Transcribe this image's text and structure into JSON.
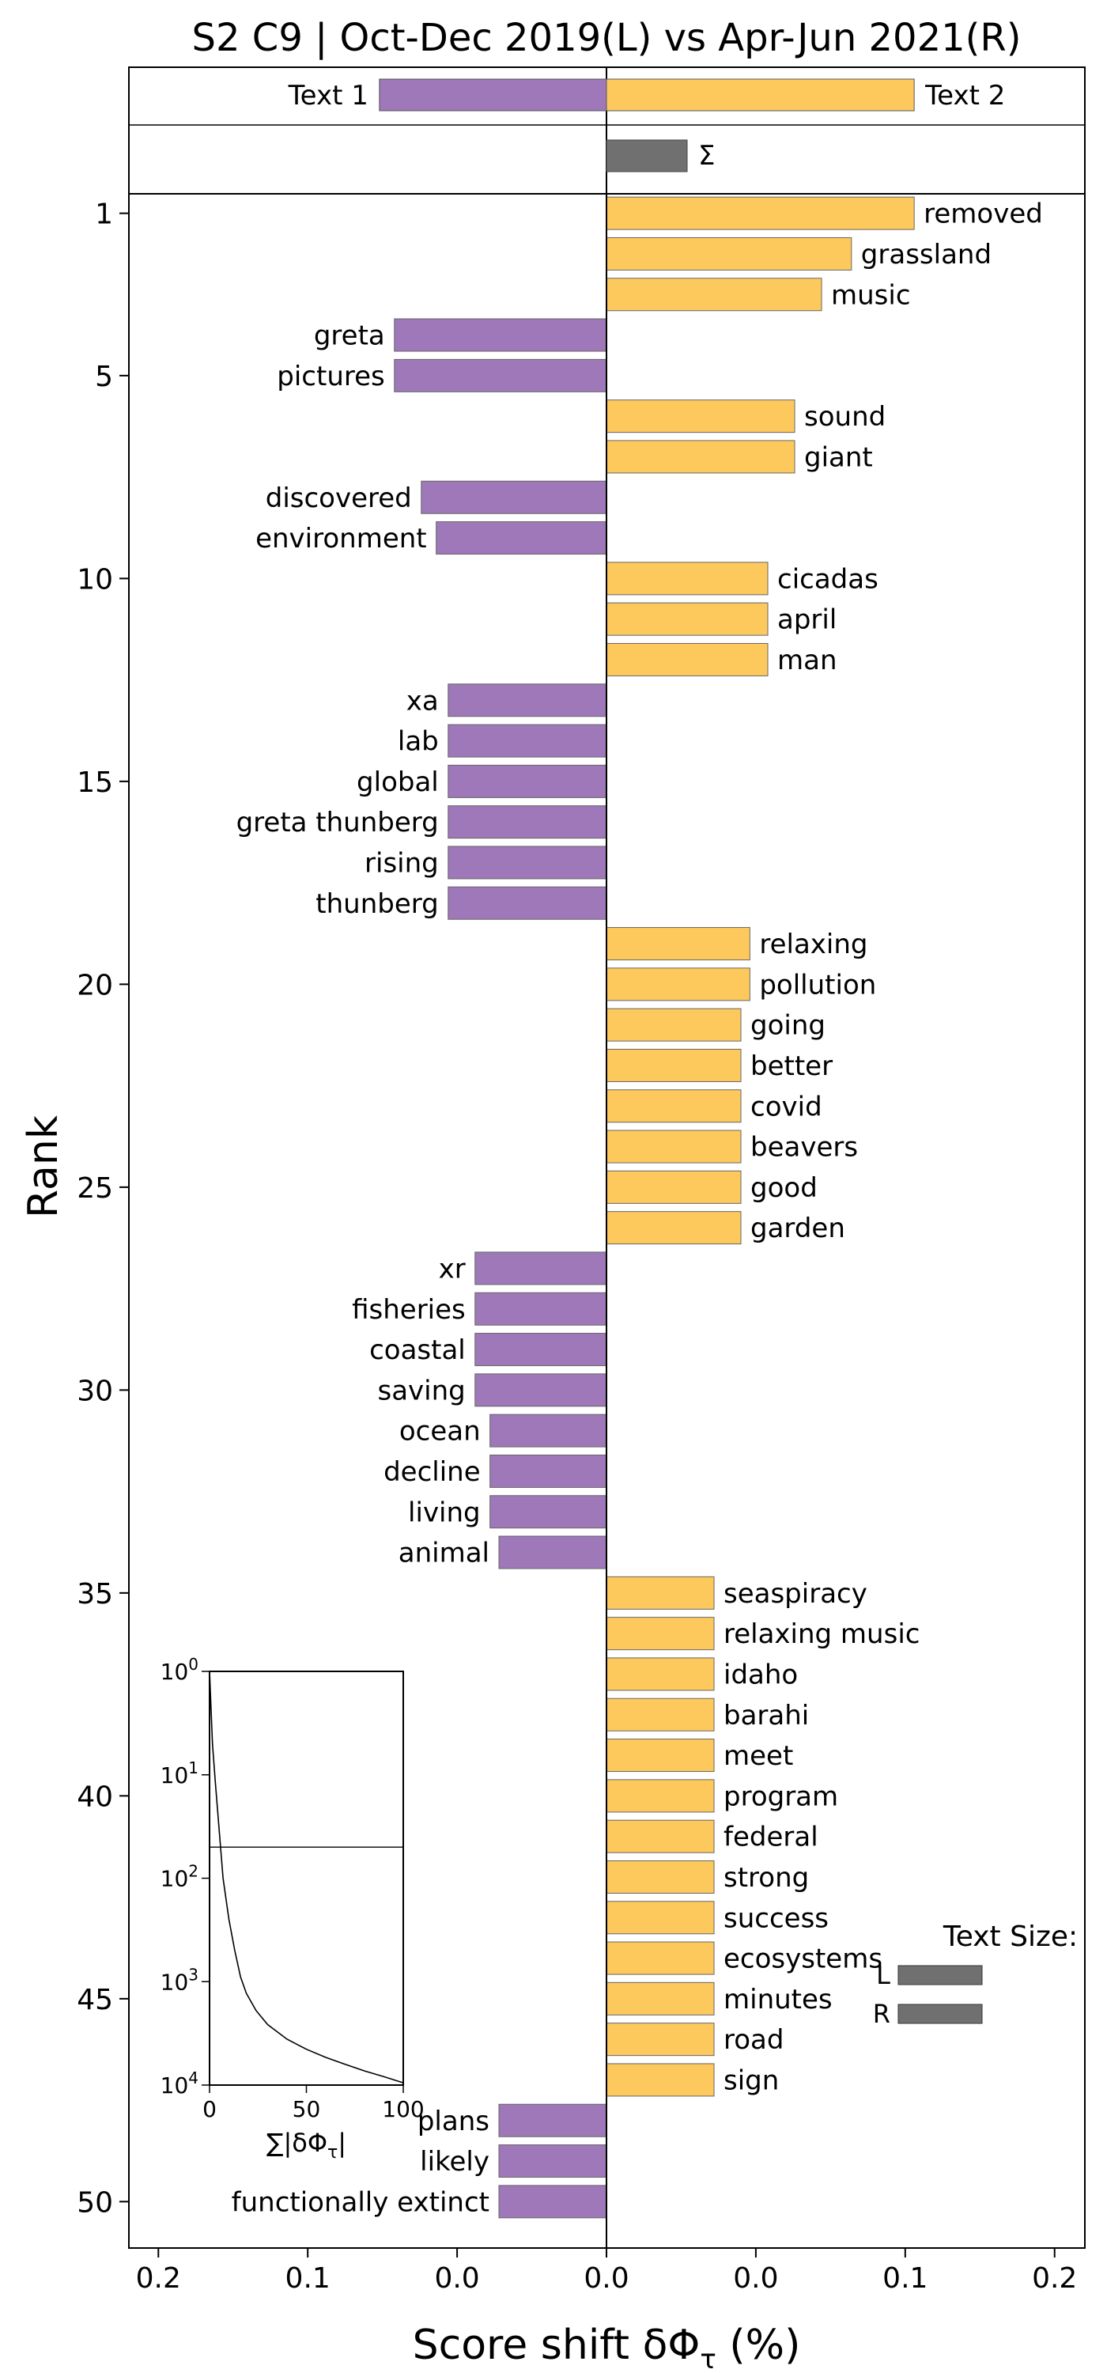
{
  "chart_data": {
    "type": "bar",
    "orientation": "horizontal",
    "title": "S2 C9 | Oct-Dec 2019(L) vs Apr-Jun 2021(R)",
    "xlabel": "Score shift δΦ",
    "xlabel_subscript": "τ",
    "xlabel_suffix": " (%)",
    "ylabel": "Rank",
    "xlim": [
      -0.16,
      0.16
    ],
    "x_ticks": [
      {
        "v": -0.15,
        "label": "0.2"
      },
      {
        "v": -0.1,
        "label": "0.1"
      },
      {
        "v": -0.05,
        "label": "0.0"
      },
      {
        "v": 0.0,
        "label": "0.0"
      },
      {
        "v": 0.05,
        "label": "0.0"
      },
      {
        "v": 0.1,
        "label": "0.1"
      },
      {
        "v": 0.15,
        "label": "0.2"
      }
    ],
    "y_ticks": [
      1,
      5,
      10,
      15,
      20,
      25,
      30,
      35,
      40,
      45,
      50
    ],
    "colors": {
      "text1": "#9e78b8",
      "text2": "#fdc95d",
      "sum": "#707070"
    },
    "header": {
      "text1_label": "Text 1",
      "text1_value": -0.076,
      "text2_label": "Text 2",
      "text2_value": 0.103,
      "sum_label": "Σ",
      "sum_value": 0.027
    },
    "words": [
      {
        "rank": 1,
        "word": "removed",
        "value": 0.103
      },
      {
        "rank": 2,
        "word": "grassland",
        "value": 0.082
      },
      {
        "rank": 3,
        "word": "music",
        "value": 0.072
      },
      {
        "rank": 4,
        "word": "greta",
        "value": -0.071
      },
      {
        "rank": 5,
        "word": "pictures",
        "value": -0.071
      },
      {
        "rank": 6,
        "word": "sound",
        "value": 0.063
      },
      {
        "rank": 7,
        "word": "giant",
        "value": 0.063
      },
      {
        "rank": 8,
        "word": "discovered",
        "value": -0.062
      },
      {
        "rank": 9,
        "word": "environment",
        "value": -0.057
      },
      {
        "rank": 10,
        "word": "cicadas",
        "value": 0.054
      },
      {
        "rank": 11,
        "word": "april",
        "value": 0.054
      },
      {
        "rank": 12,
        "word": "man",
        "value": 0.054
      },
      {
        "rank": 13,
        "word": "xa",
        "value": -0.053
      },
      {
        "rank": 14,
        "word": "lab",
        "value": -0.053
      },
      {
        "rank": 15,
        "word": "global",
        "value": -0.053
      },
      {
        "rank": 16,
        "word": "greta thunberg",
        "value": -0.053
      },
      {
        "rank": 17,
        "word": "rising",
        "value": -0.053
      },
      {
        "rank": 18,
        "word": "thunberg",
        "value": -0.053
      },
      {
        "rank": 19,
        "word": "relaxing",
        "value": 0.048
      },
      {
        "rank": 20,
        "word": "pollution",
        "value": 0.048
      },
      {
        "rank": 21,
        "word": "going",
        "value": 0.045
      },
      {
        "rank": 22,
        "word": "better",
        "value": 0.045
      },
      {
        "rank": 23,
        "word": "covid",
        "value": 0.045
      },
      {
        "rank": 24,
        "word": "beavers",
        "value": 0.045
      },
      {
        "rank": 25,
        "word": "good",
        "value": 0.045
      },
      {
        "rank": 26,
        "word": "garden",
        "value": 0.045
      },
      {
        "rank": 27,
        "word": "xr",
        "value": -0.044
      },
      {
        "rank": 28,
        "word": "fisheries",
        "value": -0.044
      },
      {
        "rank": 29,
        "word": "coastal",
        "value": -0.044
      },
      {
        "rank": 30,
        "word": "saving",
        "value": -0.044
      },
      {
        "rank": 31,
        "word": "ocean",
        "value": -0.039
      },
      {
        "rank": 32,
        "word": "decline",
        "value": -0.039
      },
      {
        "rank": 33,
        "word": "living",
        "value": -0.039
      },
      {
        "rank": 34,
        "word": "animal",
        "value": -0.036
      },
      {
        "rank": 35,
        "word": "seaspiracy",
        "value": 0.036
      },
      {
        "rank": 36,
        "word": "relaxing music",
        "value": 0.036
      },
      {
        "rank": 37,
        "word": "idaho",
        "value": 0.036
      },
      {
        "rank": 38,
        "word": "barahi",
        "value": 0.036
      },
      {
        "rank": 39,
        "word": "meet",
        "value": 0.036
      },
      {
        "rank": 40,
        "word": "program",
        "value": 0.036
      },
      {
        "rank": 41,
        "word": "federal",
        "value": 0.036
      },
      {
        "rank": 42,
        "word": "strong",
        "value": 0.036
      },
      {
        "rank": 43,
        "word": "success",
        "value": 0.036
      },
      {
        "rank": 44,
        "word": "ecosystems",
        "value": 0.036
      },
      {
        "rank": 45,
        "word": "minutes",
        "value": 0.036
      },
      {
        "rank": 46,
        "word": "road",
        "value": 0.036
      },
      {
        "rank": 47,
        "word": "sign",
        "value": 0.036
      },
      {
        "rank": 48,
        "word": "plans",
        "value": -0.036
      },
      {
        "rank": 49,
        "word": "likely",
        "value": -0.036
      },
      {
        "rank": 50,
        "word": "functionally extinct",
        "value": -0.036
      }
    ],
    "inset": {
      "type": "line",
      "xlabel": "∑|δΦ",
      "xlabel_subscript": "τ",
      "xlabel_suffix": "|",
      "x_ticks": [
        0,
        50,
        100
      ],
      "y_ticks": [
        {
          "base": "10",
          "exp": "0"
        },
        {
          "base": "10",
          "exp": "1"
        },
        {
          "base": "10",
          "exp": "2"
        },
        {
          "base": "10",
          "exp": "3"
        },
        {
          "base": "10",
          "exp": "4"
        }
      ],
      "xlim": [
        0,
        100
      ],
      "ylim_log_rank": [
        1,
        10000
      ],
      "marker_rank": 50,
      "curve": [
        {
          "x": 0,
          "rank": 1
        },
        {
          "x": 1.5,
          "rank": 5
        },
        {
          "x": 3,
          "rank": 12
        },
        {
          "x": 5,
          "rank": 35
        },
        {
          "x": 7,
          "rank": 100
        },
        {
          "x": 10,
          "rank": 250
        },
        {
          "x": 13,
          "rank": 500
        },
        {
          "x": 16,
          "rank": 900
        },
        {
          "x": 19,
          "rank": 1300
        },
        {
          "x": 24,
          "rank": 1900
        },
        {
          "x": 30,
          "rank": 2600
        },
        {
          "x": 40,
          "rank": 3600
        },
        {
          "x": 50,
          "rank": 4500
        },
        {
          "x": 60,
          "rank": 5400
        },
        {
          "x": 70,
          "rank": 6300
        },
        {
          "x": 80,
          "rank": 7300
        },
        {
          "x": 90,
          "rank": 8300
        },
        {
          "x": 100,
          "rank": 9500
        }
      ]
    },
    "text_size_legend": {
      "title": "Text Size:",
      "left_label": "L",
      "right_label": "R",
      "left_value": 0.5,
      "right_value": 0.5
    }
  }
}
